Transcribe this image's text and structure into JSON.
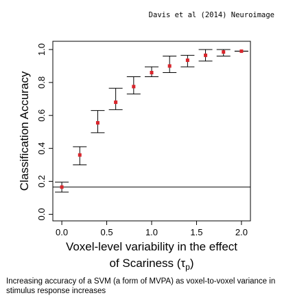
{
  "citation": "Davis et al (2014) Neuroimage",
  "caption": "Increasing accuracy of a SVM (a form of MVPA) as voxel-to-voxel variance in stimulus response increases",
  "chart_data": {
    "type": "scatter",
    "title": "",
    "xlabel_line1": "Voxel-level variability in the effect",
    "xlabel_line2_prefix": "of Scariness (",
    "xlabel_symbol": "τ",
    "xlabel_subscript": "p",
    "xlabel_line2_suffix": ")",
    "ylabel": "Classification Accuracy",
    "xlim": [
      -0.1,
      2.1
    ],
    "ylim": [
      -0.04,
      1.05
    ],
    "x_ticks": [
      0.0,
      0.5,
      1.0,
      1.5,
      2.0
    ],
    "x_tick_labels": [
      "0.0",
      "0.5",
      "1.0",
      "1.5",
      "2.0"
    ],
    "y_ticks": [
      0.0,
      0.2,
      0.4,
      0.6,
      0.8,
      1.0
    ],
    "y_tick_labels": [
      "0.0",
      "0.2",
      "0.4",
      "0.6",
      "0.8",
      "1.0"
    ],
    "grid": false,
    "reference_line": 0.165,
    "point_color": "#d9262c",
    "points": [
      {
        "x": 0.0,
        "y": 0.165,
        "lower": 0.135,
        "upper": 0.195
      },
      {
        "x": 0.2,
        "y": 0.36,
        "lower": 0.3,
        "upper": 0.41
      },
      {
        "x": 0.4,
        "y": 0.555,
        "lower": 0.495,
        "upper": 0.63
      },
      {
        "x": 0.6,
        "y": 0.68,
        "lower": 0.635,
        "upper": 0.765
      },
      {
        "x": 0.8,
        "y": 0.775,
        "lower": 0.73,
        "upper": 0.835
      },
      {
        "x": 1.0,
        "y": 0.86,
        "lower": 0.835,
        "upper": 0.895
      },
      {
        "x": 1.2,
        "y": 0.9,
        "lower": 0.86,
        "upper": 0.96
      },
      {
        "x": 1.4,
        "y": 0.935,
        "lower": 0.895,
        "upper": 0.965
      },
      {
        "x": 1.6,
        "y": 0.965,
        "lower": 0.93,
        "upper": 1.0
      },
      {
        "x": 1.8,
        "y": 0.985,
        "lower": 0.96,
        "upper": 1.0
      },
      {
        "x": 2.0,
        "y": 0.99,
        "lower": 0.99,
        "upper": 0.99
      }
    ]
  }
}
